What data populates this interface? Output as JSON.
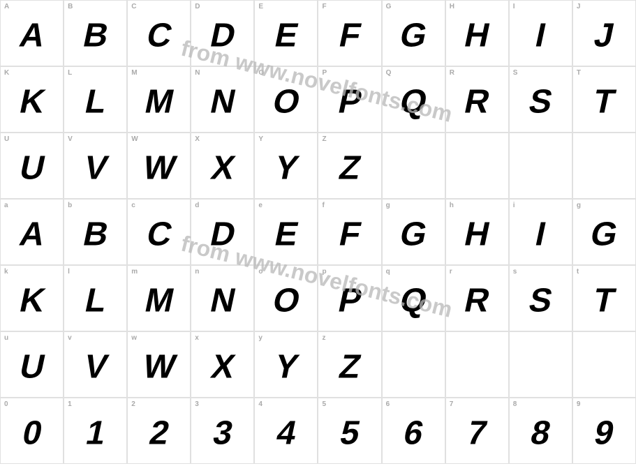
{
  "watermark_text": "from www.novelfonts.com",
  "watermark_color": "#b8b8b8",
  "label_color": "#aaaaaa",
  "glyph_color": "#000000",
  "border_color": "#e0e0e0",
  "rows": [
    [
      {
        "label": "A",
        "glyph": "A"
      },
      {
        "label": "B",
        "glyph": "B"
      },
      {
        "label": "C",
        "glyph": "C"
      },
      {
        "label": "D",
        "glyph": "D"
      },
      {
        "label": "E",
        "glyph": "E"
      },
      {
        "label": "F",
        "glyph": "F"
      },
      {
        "label": "G",
        "glyph": "G"
      },
      {
        "label": "H",
        "glyph": "H"
      },
      {
        "label": "I",
        "glyph": "I"
      },
      {
        "label": "J",
        "glyph": "J"
      }
    ],
    [
      {
        "label": "K",
        "glyph": "K"
      },
      {
        "label": "L",
        "glyph": "L"
      },
      {
        "label": "M",
        "glyph": "M"
      },
      {
        "label": "N",
        "glyph": "N"
      },
      {
        "label": "O",
        "glyph": "O"
      },
      {
        "label": "P",
        "glyph": "P"
      },
      {
        "label": "Q",
        "glyph": "Q"
      },
      {
        "label": "R",
        "glyph": "R"
      },
      {
        "label": "S",
        "glyph": "S"
      },
      {
        "label": "T",
        "glyph": "T"
      }
    ],
    [
      {
        "label": "U",
        "glyph": "U"
      },
      {
        "label": "V",
        "glyph": "V"
      },
      {
        "label": "W",
        "glyph": "W"
      },
      {
        "label": "X",
        "glyph": "X"
      },
      {
        "label": "Y",
        "glyph": "Y"
      },
      {
        "label": "Z",
        "glyph": "Z"
      },
      {
        "label": "",
        "glyph": ""
      },
      {
        "label": "",
        "glyph": ""
      },
      {
        "label": "",
        "glyph": ""
      },
      {
        "label": "",
        "glyph": ""
      }
    ],
    [
      {
        "label": "a",
        "glyph": "A"
      },
      {
        "label": "b",
        "glyph": "B"
      },
      {
        "label": "c",
        "glyph": "C"
      },
      {
        "label": "d",
        "glyph": "D"
      },
      {
        "label": "e",
        "glyph": "E"
      },
      {
        "label": "f",
        "glyph": "F"
      },
      {
        "label": "g",
        "glyph": "G"
      },
      {
        "label": "h",
        "glyph": "H"
      },
      {
        "label": "i",
        "glyph": "I"
      },
      {
        "label": "g",
        "glyph": "G"
      }
    ],
    [
      {
        "label": "k",
        "glyph": "K"
      },
      {
        "label": "l",
        "glyph": "L"
      },
      {
        "label": "m",
        "glyph": "M"
      },
      {
        "label": "n",
        "glyph": "N"
      },
      {
        "label": "o",
        "glyph": "O"
      },
      {
        "label": "p",
        "glyph": "P"
      },
      {
        "label": "q",
        "glyph": "Q"
      },
      {
        "label": "r",
        "glyph": "R"
      },
      {
        "label": "s",
        "glyph": "S"
      },
      {
        "label": "t",
        "glyph": "T"
      }
    ],
    [
      {
        "label": "u",
        "glyph": "U"
      },
      {
        "label": "v",
        "glyph": "V"
      },
      {
        "label": "w",
        "glyph": "W"
      },
      {
        "label": "x",
        "glyph": "X"
      },
      {
        "label": "y",
        "glyph": "Y"
      },
      {
        "label": "z",
        "glyph": "Z"
      },
      {
        "label": "",
        "glyph": ""
      },
      {
        "label": "",
        "glyph": ""
      },
      {
        "label": "",
        "glyph": ""
      },
      {
        "label": "",
        "glyph": ""
      }
    ],
    [
      {
        "label": "0",
        "glyph": "0"
      },
      {
        "label": "1",
        "glyph": "1"
      },
      {
        "label": "2",
        "glyph": "2"
      },
      {
        "label": "3",
        "glyph": "3"
      },
      {
        "label": "4",
        "glyph": "4"
      },
      {
        "label": "5",
        "glyph": "5"
      },
      {
        "label": "6",
        "glyph": "6"
      },
      {
        "label": "7",
        "glyph": "7"
      },
      {
        "label": "8",
        "glyph": "8"
      },
      {
        "label": "9",
        "glyph": "9"
      }
    ]
  ]
}
